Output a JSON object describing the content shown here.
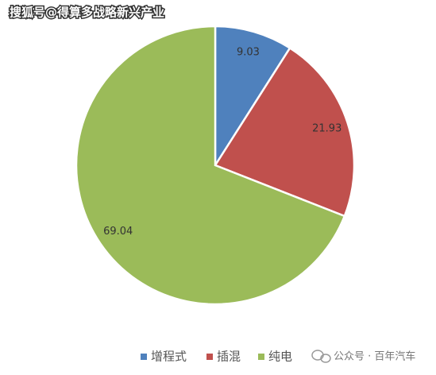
{
  "watermark": "搜狐号@得算多战略新兴产业",
  "source": "公众号 · 百年汽车",
  "chart_data": {
    "type": "pie",
    "categories": [
      "增程式",
      "插混",
      "纯电"
    ],
    "values": [
      9.03,
      21.93,
      69.04
    ],
    "colors": [
      "#4f81bd",
      "#c0504d",
      "#9bbb59"
    ],
    "legend": "bottom"
  }
}
